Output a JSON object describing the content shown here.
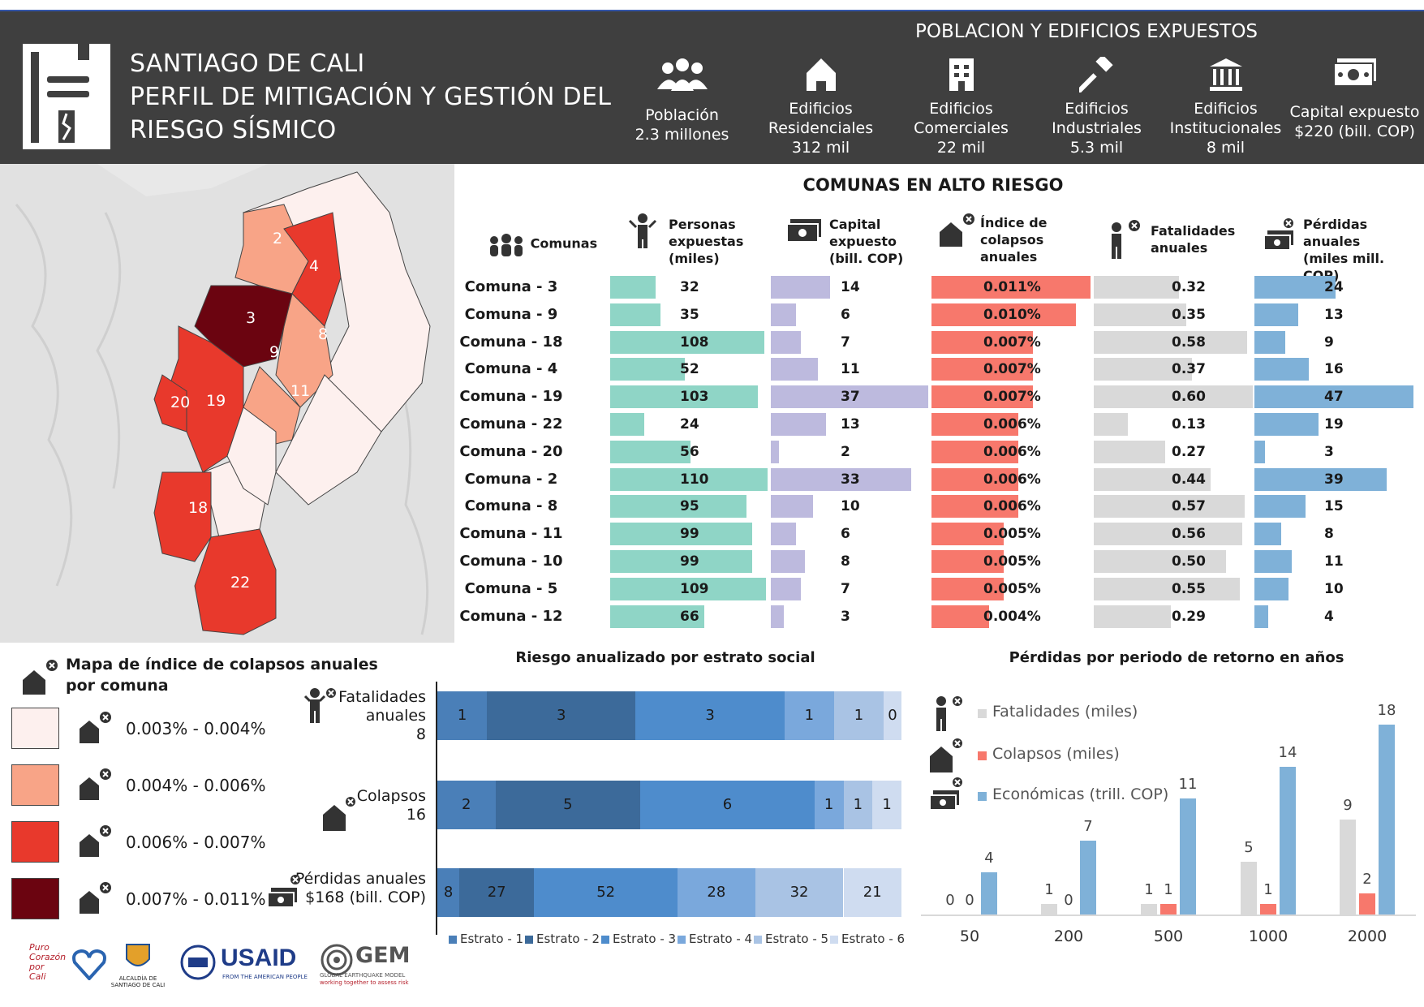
{
  "header": {
    "title_lines": [
      "SANTIAGO DE CALI",
      "PERFIL DE MITIGACIÓN Y GESTIÓN DEL",
      "RIESGO SÍSMICO"
    ],
    "exposure_title": "POBLACION Y EDIFICIOS EXPUESTOS",
    "stats": [
      {
        "icon": "people-icon",
        "line1": "Población",
        "line2": "2.3 millones",
        "line3": ""
      },
      {
        "icon": "house-icon",
        "line1": "Edificios",
        "line2": "Residenciales",
        "line3": "312 mil"
      },
      {
        "icon": "store-icon",
        "line1": "Edificios",
        "line2": "Comerciales",
        "line3": "22 mil"
      },
      {
        "icon": "hammer-icon",
        "line1": "Edificios",
        "line2": "Industriales",
        "line3": "5.3 mil"
      },
      {
        "icon": "institution-icon",
        "line1": "Edificios",
        "line2": "Institucionales",
        "line3": "8 mil"
      },
      {
        "icon": "money-icon",
        "line1": "Capital expuesto",
        "line2": "$220 (bill. COP)",
        "line3": ""
      }
    ]
  },
  "map": {
    "comuna_labels": [
      "2",
      "4",
      "3",
      "8",
      "9",
      "11",
      "20",
      "19",
      "18",
      "22"
    ],
    "colors": {
      "low": "#fdf0ee",
      "mid_low": "#f8a487",
      "mid_high": "#e8392c",
      "high": "#6b0410"
    }
  },
  "table": {
    "title": "COMUNAS EN ALTO RIESGO",
    "headers": {
      "comunas": "Comunas",
      "personas": [
        "Personas",
        "expuestas",
        "(miles)"
      ],
      "capital": [
        "Capital",
        "expuesto",
        "(bill. COP)"
      ],
      "indice": [
        "Índice de",
        "colapsos",
        "anuales"
      ],
      "fatalidades": [
        "Fatalidades",
        "anuales"
      ],
      "perdidas": [
        "Pérdidas anuales",
        "(miles mill. COP)"
      ]
    },
    "colors": {
      "personas": "#8fd5c6",
      "capital": "#bdbade",
      "indice": "#f7786c",
      "fatalidades": "#d9d9d9",
      "perdidas": "#7fb1d8"
    },
    "rows": [
      {
        "name": "Comuna - 3",
        "personas": "32",
        "capital": "14",
        "indice": "0.011%",
        "fatalidades": "0.32",
        "perdidas": "24"
      },
      {
        "name": "Comuna - 9",
        "personas": "35",
        "capital": "6",
        "indice": "0.010%",
        "fatalidades": "0.35",
        "perdidas": "13"
      },
      {
        "name": "Comuna - 18",
        "personas": "108",
        "capital": "7",
        "indice": "0.007%",
        "fatalidades": "0.58",
        "perdidas": "9"
      },
      {
        "name": "Comuna - 4",
        "personas": "52",
        "capital": "11",
        "indice": "0.007%",
        "fatalidades": "0.37",
        "perdidas": "16"
      },
      {
        "name": "Comuna - 19",
        "personas": "103",
        "capital": "37",
        "indice": "0.007%",
        "fatalidades": "0.60",
        "perdidas": "47"
      },
      {
        "name": "Comuna - 22",
        "personas": "24",
        "capital": "13",
        "indice": "0.006%",
        "fatalidades": "0.13",
        "perdidas": "19"
      },
      {
        "name": "Comuna - 20",
        "personas": "56",
        "capital": "2",
        "indice": "0.006%",
        "fatalidades": "0.27",
        "perdidas": "3"
      },
      {
        "name": "Comuna - 2",
        "personas": "110",
        "capital": "33",
        "indice": "0.006%",
        "fatalidades": "0.44",
        "perdidas": "39"
      },
      {
        "name": "Comuna - 8",
        "personas": "95",
        "capital": "10",
        "indice": "0.006%",
        "fatalidades": "0.57",
        "perdidas": "15"
      },
      {
        "name": "Comuna - 11",
        "personas": "99",
        "capital": "6",
        "indice": "0.005%",
        "fatalidades": "0.56",
        "perdidas": "8"
      },
      {
        "name": "Comuna - 10",
        "personas": "99",
        "capital": "8",
        "indice": "0.005%",
        "fatalidades": "0.50",
        "perdidas": "11"
      },
      {
        "name": "Comuna - 5",
        "personas": "109",
        "capital": "7",
        "indice": "0.005%",
        "fatalidades": "0.55",
        "perdidas": "10"
      },
      {
        "name": "Comuna - 12",
        "personas": "66",
        "capital": "3",
        "indice": "0.004%",
        "fatalidades": "0.29",
        "perdidas": "4"
      }
    ]
  },
  "legend": {
    "title_lines": [
      "Mapa de índice de colapsos anuales",
      "por comuna"
    ],
    "items": [
      {
        "label": "0.003% - 0.004%",
        "color": "#fdf0ee"
      },
      {
        "label": "0.004% - 0.006%",
        "color": "#f8a487"
      },
      {
        "label": "0.006% - 0.007%",
        "color": "#e8392c"
      },
      {
        "label": "0.007% - 0.011%",
        "color": "#6b0410"
      }
    ]
  },
  "strata_chart": {
    "title": "Riesgo anualizado por estrato social",
    "rows": [
      {
        "label_lines": [
          "Fatalidades",
          "anuales",
          "8"
        ],
        "icon": "person-x-icon",
        "values": [
          1,
          3,
          3,
          1,
          1,
          0
        ]
      },
      {
        "label_lines": [
          "Colapsos",
          "16"
        ],
        "icon": "house-x-icon",
        "values": [
          2,
          5,
          6,
          1,
          1,
          1
        ]
      },
      {
        "label_lines": [
          "Pérdidas anuales",
          "$168 (bill. COP)"
        ],
        "icon": "money-x-icon",
        "values": [
          8,
          27,
          52,
          28,
          32,
          21
        ]
      }
    ],
    "legend": [
      "Estrato - 1",
      "Estrato - 2",
      "Estrato - 3",
      "Estrato - 4",
      "Estrato - 5",
      "Estrato - 6"
    ],
    "colors": [
      "#4a7fb8",
      "#3c6a9a",
      "#4e8ccc",
      "#7aa8dc",
      "#a9c3e4",
      "#cfdcf0"
    ]
  },
  "chart_data": {
    "type": "bar",
    "title": "Pérdidas por periodo de retorno en años",
    "categories": [
      "50",
      "200",
      "500",
      "1000",
      "2000"
    ],
    "series": [
      {
        "name": "Fatalidades (miles)",
        "values": [
          0,
          1,
          1,
          5,
          9
        ],
        "color": "#d9d9d9"
      },
      {
        "name": "Colapsos (miles)",
        "values": [
          0,
          0,
          1,
          1,
          2
        ],
        "color": "#f7786c"
      },
      {
        "name": "Económicas (trill. COP)",
        "values": [
          4,
          7,
          11,
          14,
          18
        ],
        "color": "#7fb1d8"
      }
    ],
    "ylim": [
      0,
      20
    ],
    "legend_position": "left"
  },
  "logos": {
    "cali": [
      "Puro",
      "Corazón",
      "por",
      "Cali"
    ],
    "alcaldia": [
      "ALCALDÍA DE",
      "SANTIAGO DE CALI"
    ],
    "usaid": [
      "USAID",
      "FROM THE AMERICAN PEOPLE"
    ],
    "gem": [
      "GEM",
      "GLOBAL EARTHQUAKE MODEL",
      "working together to assess risk"
    ]
  }
}
